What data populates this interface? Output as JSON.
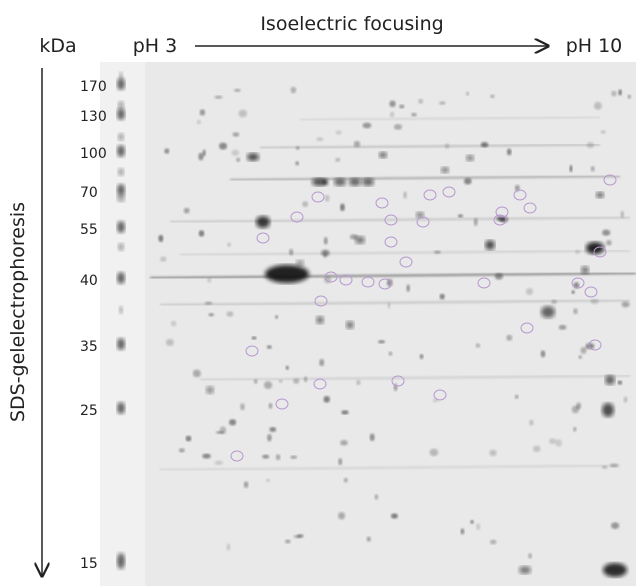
{
  "header": {
    "unit": "kDa",
    "ph_start": "pH 3",
    "title": "Isoelectric focusing",
    "ph_end": "pH 10"
  },
  "side_label": "SDS-gelelectrophoresis",
  "molecular_weights": [
    170,
    130,
    100,
    70,
    55,
    40,
    35,
    25,
    15
  ]
}
